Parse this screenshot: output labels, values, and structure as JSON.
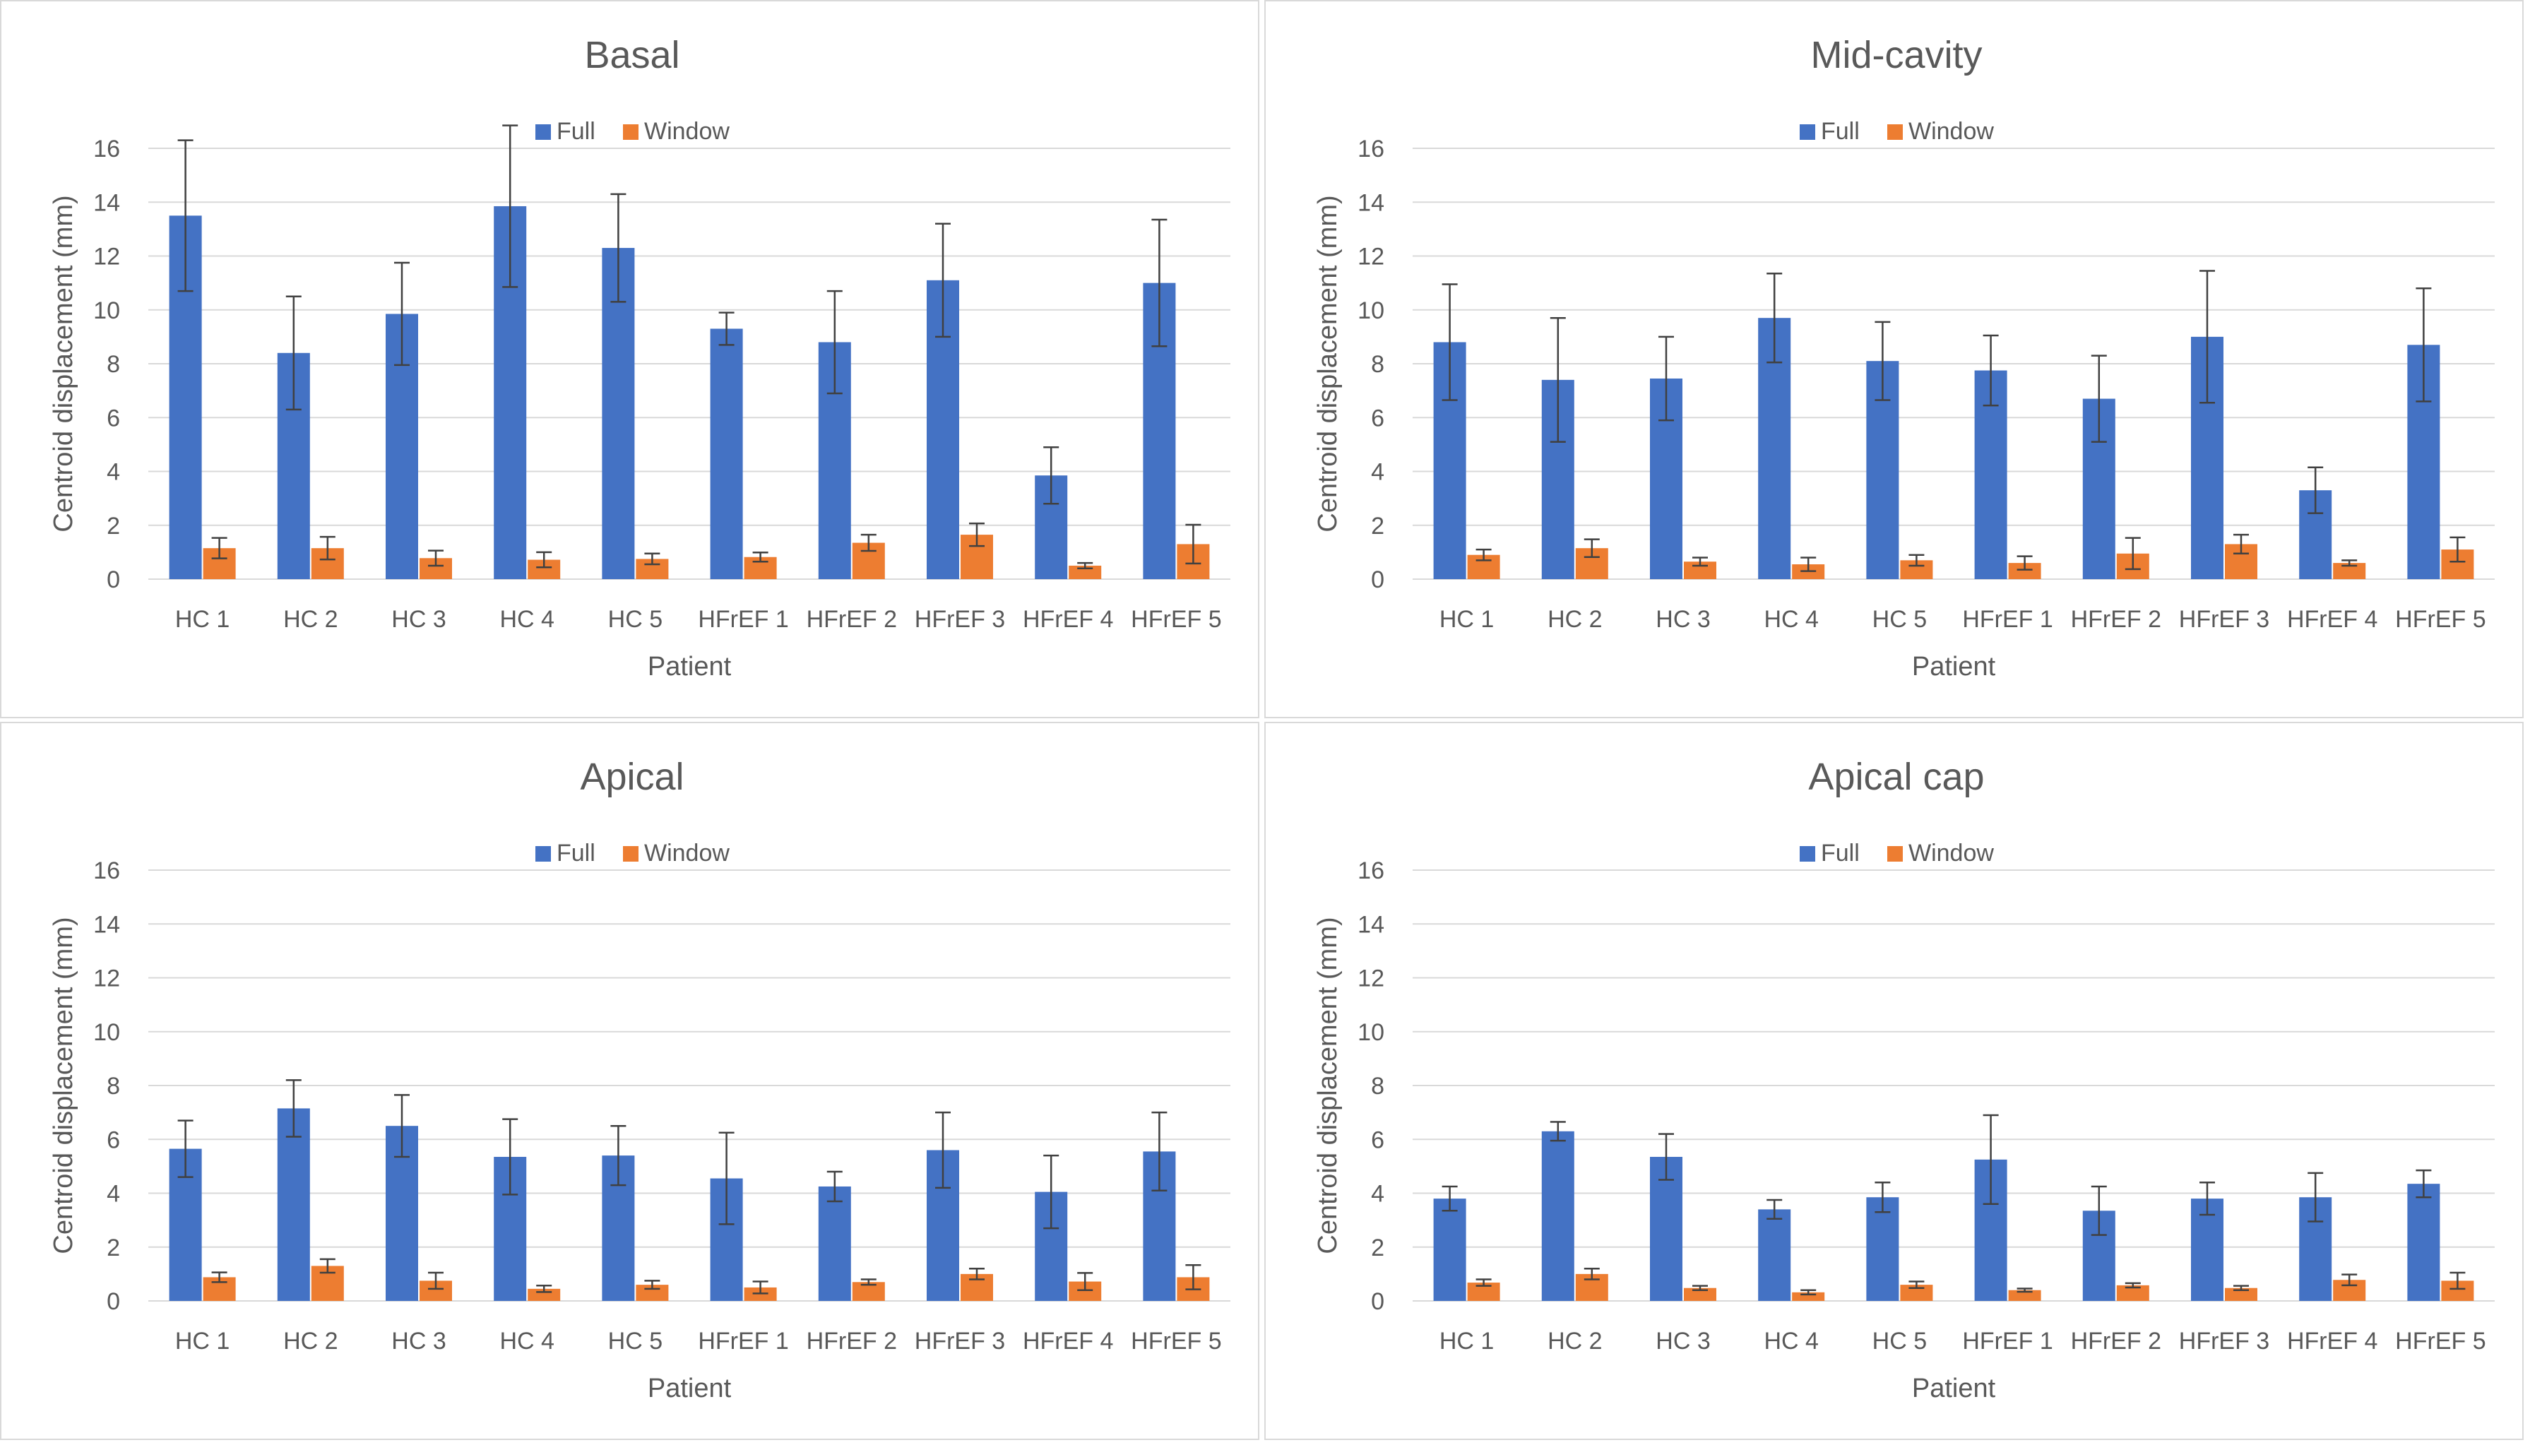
{
  "colors": {
    "full": "#4472C4",
    "window": "#ED7D31",
    "grid": "#d9d9d9",
    "text": "#595959",
    "error": "#404040"
  },
  "chart_data": [
    {
      "type": "bar",
      "title": "Basal",
      "xlabel": "Patient",
      "ylabel": "Centroid displacement (mm)",
      "ylim": [
        0,
        16
      ],
      "yticks": [
        "0",
        "2",
        "4",
        "6",
        "8",
        "10",
        "12",
        "14",
        "16"
      ],
      "grid": true,
      "legend_position": "top-center",
      "categories": [
        "HC 1",
        "HC 2",
        "HC 3",
        "HC 4",
        "HC 5",
        "HFrEF 1",
        "HFrEF 2",
        "HFrEF 3",
        "HFrEF 4",
        "HFrEF 5"
      ],
      "series": [
        {
          "name": "Full",
          "values": [
            13.5,
            8.4,
            9.85,
            13.85,
            12.3,
            9.3,
            8.8,
            11.1,
            3.85,
            11.0
          ],
          "errors": [
            2.8,
            2.1,
            1.9,
            3.0,
            2.0,
            0.6,
            1.9,
            2.1,
            1.05,
            2.35
          ]
        },
        {
          "name": "Window",
          "values": [
            1.15,
            1.15,
            0.78,
            0.72,
            0.75,
            0.82,
            1.35,
            1.65,
            0.5,
            1.3
          ],
          "errors": [
            0.38,
            0.42,
            0.28,
            0.28,
            0.2,
            0.17,
            0.3,
            0.42,
            0.1,
            0.72
          ]
        }
      ]
    },
    {
      "type": "bar",
      "title": "Mid-cavity",
      "xlabel": "Patient",
      "ylabel": "Centroid displacement (mm)",
      "ylim": [
        0,
        16
      ],
      "yticks": [
        "0",
        "2",
        "4",
        "6",
        "8",
        "10",
        "12",
        "14",
        "16"
      ],
      "grid": true,
      "legend_position": "top-center",
      "categories": [
        "HC 1",
        "HC 2",
        "HC 3",
        "HC 4",
        "HC 5",
        "HFrEF 1",
        "HFrEF 2",
        "HFrEF 3",
        "HFrEF 4",
        "HFrEF 5"
      ],
      "series": [
        {
          "name": "Full",
          "values": [
            8.8,
            7.4,
            7.45,
            9.7,
            8.1,
            7.75,
            6.7,
            9.0,
            3.3,
            8.7
          ],
          "errors": [
            2.15,
            2.3,
            1.55,
            1.65,
            1.45,
            1.3,
            1.6,
            2.45,
            0.85,
            2.1
          ]
        },
        {
          "name": "Window",
          "values": [
            0.9,
            1.15,
            0.65,
            0.55,
            0.7,
            0.6,
            0.95,
            1.3,
            0.6,
            1.1
          ],
          "errors": [
            0.2,
            0.33,
            0.15,
            0.25,
            0.2,
            0.25,
            0.58,
            0.35,
            0.1,
            0.45
          ]
        }
      ]
    },
    {
      "type": "bar",
      "title": "Apical",
      "xlabel": "Patient",
      "ylabel": "Centroid displacement (mm)",
      "ylim": [
        0,
        16
      ],
      "yticks": [
        "0",
        "2",
        "4",
        "6",
        "8",
        "10",
        "12",
        "14",
        "16"
      ],
      "grid": true,
      "legend_position": "top-center",
      "categories": [
        "HC 1",
        "HC 2",
        "HC 3",
        "HC 4",
        "HC 5",
        "HFrEF 1",
        "HFrEF 2",
        "HFrEF 3",
        "HFrEF 4",
        "HFrEF 5"
      ],
      "series": [
        {
          "name": "Full",
          "values": [
            5.65,
            7.15,
            6.5,
            5.35,
            5.4,
            4.55,
            4.25,
            5.6,
            4.05,
            5.55
          ],
          "errors": [
            1.05,
            1.05,
            1.15,
            1.4,
            1.1,
            1.7,
            0.55,
            1.4,
            1.35,
            1.45
          ]
        },
        {
          "name": "Window",
          "values": [
            0.88,
            1.3,
            0.75,
            0.45,
            0.6,
            0.5,
            0.7,
            1.0,
            0.72,
            0.88
          ],
          "errors": [
            0.18,
            0.25,
            0.3,
            0.12,
            0.15,
            0.22,
            0.1,
            0.2,
            0.32,
            0.45
          ]
        }
      ]
    },
    {
      "type": "bar",
      "title": "Apical cap",
      "xlabel": "Patient",
      "ylabel": "Centroid displacement (mm)",
      "ylim": [
        0,
        16
      ],
      "yticks": [
        "0",
        "2",
        "4",
        "6",
        "8",
        "10",
        "12",
        "14",
        "16"
      ],
      "grid": true,
      "legend_position": "top-center",
      "categories": [
        "HC 1",
        "HC 2",
        "HC 3",
        "HC 4",
        "HC 5",
        "HFrEF 1",
        "HFrEF 2",
        "HFrEF 3",
        "HFrEF 4",
        "HFrEF 5"
      ],
      "series": [
        {
          "name": "Full",
          "values": [
            3.8,
            6.3,
            5.35,
            3.4,
            3.85,
            5.25,
            3.35,
            3.8,
            3.85,
            4.35
          ],
          "errors": [
            0.45,
            0.35,
            0.85,
            0.35,
            0.55,
            1.65,
            0.9,
            0.6,
            0.9,
            0.5
          ]
        },
        {
          "name": "Window",
          "values": [
            0.68,
            1.0,
            0.48,
            0.32,
            0.6,
            0.4,
            0.58,
            0.48,
            0.78,
            0.75
          ],
          "errors": [
            0.12,
            0.2,
            0.08,
            0.08,
            0.12,
            0.06,
            0.08,
            0.08,
            0.2,
            0.3
          ]
        }
      ]
    }
  ]
}
